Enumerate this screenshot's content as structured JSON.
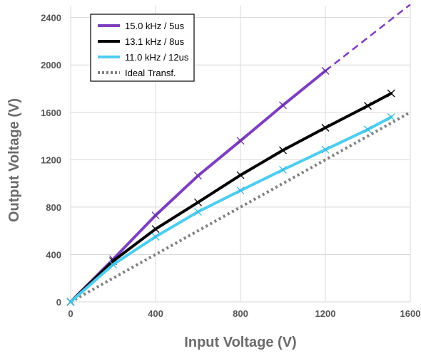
{
  "chart_data": {
    "type": "line",
    "title": "",
    "xlabel": "Input Voltage (V)",
    "ylabel": "Output Voltage (V)",
    "xlim": [
      0,
      1600
    ],
    "ylim": [
      0,
      2500
    ],
    "xticks": [
      0,
      400,
      800,
      1200,
      1600
    ],
    "yticks": [
      0,
      400,
      800,
      1200,
      1600,
      2000,
      2400
    ],
    "grid": true,
    "legend_position": "top-left",
    "series": [
      {
        "name": "15.0 kHz / 5us",
        "color": "#7e3fbf",
        "style": "solid",
        "marker": "x",
        "x": [
          0,
          200,
          400,
          600,
          800,
          1000,
          1200
        ],
        "y": [
          0,
          360,
          730,
          1065,
          1360,
          1660,
          1950
        ],
        "extrapolation": {
          "style": "dashed",
          "x": [
            1200,
            1600
          ],
          "y": [
            1950,
            2510
          ]
        }
      },
      {
        "name": "13.1 kHz / 8us",
        "color": "#000000",
        "style": "solid",
        "marker": "x",
        "x": [
          0,
          200,
          400,
          600,
          800,
          1000,
          1200,
          1400,
          1510
        ],
        "y": [
          0,
          345,
          615,
          840,
          1070,
          1280,
          1470,
          1655,
          1760
        ]
      },
      {
        "name": "11.0 kHz / 12us",
        "color": "#4dcdf0",
        "style": "solid",
        "marker": "x",
        "x": [
          0,
          200,
          400,
          600,
          800,
          1000,
          1200,
          1400,
          1510
        ],
        "y": [
          0,
          315,
          550,
          760,
          940,
          1115,
          1285,
          1455,
          1560
        ]
      },
      {
        "name": "Ideal Transf.",
        "color": "#7f7f7f",
        "style": "dotted",
        "marker": "none",
        "x": [
          0,
          1600
        ],
        "y": [
          0,
          1600
        ]
      }
    ]
  }
}
